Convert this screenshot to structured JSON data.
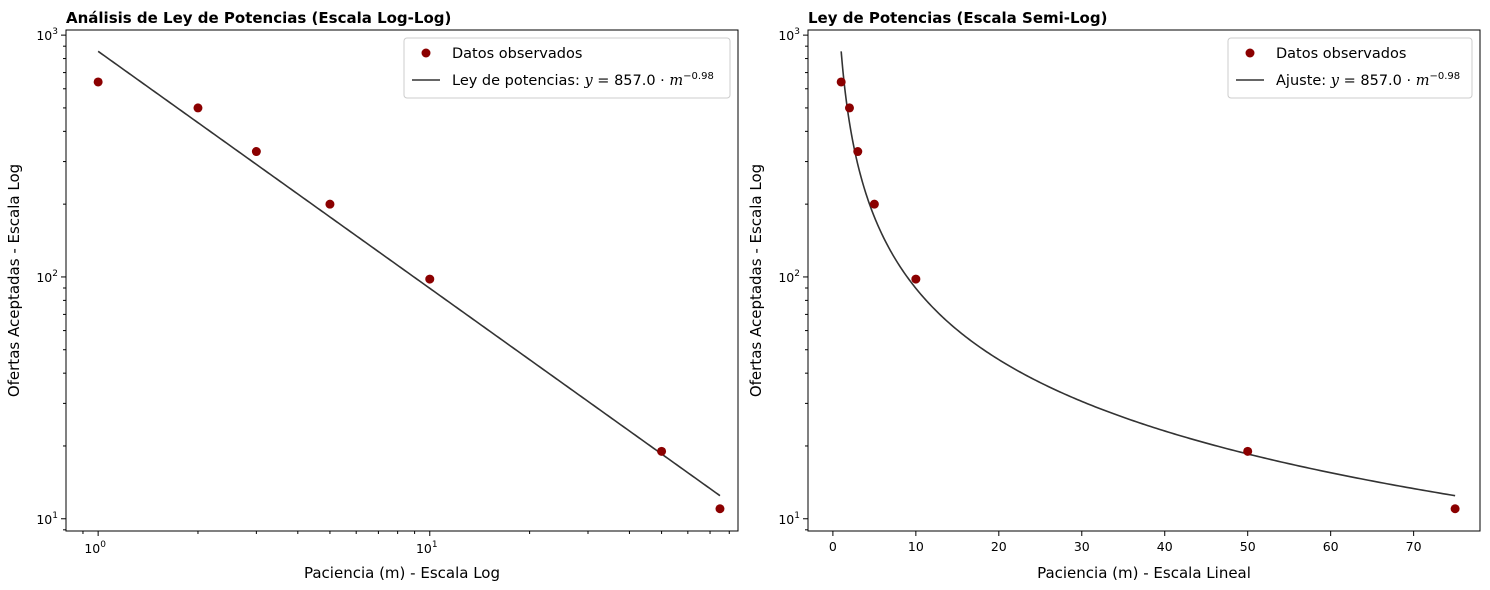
{
  "chart_data": [
    {
      "type": "scatter",
      "title": "Análisis de Ley de Potencias (Escala Log-Log)",
      "xlabel": "Paciencia (m) - Escala Log",
      "ylabel": "Ofertas Aceptadas - Escala Log",
      "xscale": "log",
      "yscale": "log",
      "xlim": [
        0.8,
        85
      ],
      "ylim": [
        8.9,
        1050
      ],
      "xticks": [
        {
          "value": 1,
          "base": "10",
          "exp": "0"
        },
        {
          "value": 10,
          "base": "10",
          "exp": "1"
        }
      ],
      "yticks": [
        {
          "value": 10,
          "base": "10",
          "exp": "1"
        },
        {
          "value": 100,
          "base": "10",
          "exp": "2"
        },
        {
          "value": 1000,
          "base": "10",
          "exp": "3"
        }
      ],
      "grid": false,
      "legend_position": "top-right",
      "series": [
        {
          "name": "Datos observados",
          "kind": "scatter",
          "color": "#8b0000",
          "x": [
            1,
            2,
            3,
            5,
            10,
            50,
            75
          ],
          "y": [
            640,
            500,
            330,
            200,
            98,
            19,
            11
          ]
        },
        {
          "name": "Ley de potencias: y = 857.0 · m^−0.98",
          "name_parts": {
            "prefix": "Ley de potencias: ",
            "coef": "857.0",
            "exp": "−0.98"
          },
          "kind": "line",
          "color": "#333333",
          "fit": {
            "a": 857.0,
            "b": -0.98,
            "xmin": 1,
            "xmax": 75
          }
        }
      ]
    },
    {
      "type": "scatter",
      "title": "Ley de Potencias (Escala Semi-Log)",
      "xlabel": "Paciencia (m) - Escala Lineal",
      "ylabel": "Ofertas Aceptadas - Escala Log",
      "xscale": "linear",
      "yscale": "log",
      "xlim": [
        -3,
        78
      ],
      "ylim": [
        8.9,
        1050
      ],
      "xticks": [
        0,
        10,
        20,
        30,
        40,
        50,
        60,
        70
      ],
      "yticks": [
        {
          "value": 10,
          "base": "10",
          "exp": "1"
        },
        {
          "value": 100,
          "base": "10",
          "exp": "2"
        },
        {
          "value": 1000,
          "base": "10",
          "exp": "3"
        }
      ],
      "grid": false,
      "legend_position": "top-right",
      "series": [
        {
          "name": "Datos observados",
          "kind": "scatter",
          "color": "#8b0000",
          "x": [
            1,
            2,
            3,
            5,
            10,
            50,
            75
          ],
          "y": [
            640,
            500,
            330,
            200,
            98,
            19,
            11
          ]
        },
        {
          "name": "Ajuste: y = 857.0 · m^−0.98",
          "name_parts": {
            "prefix": "Ajuste: ",
            "coef": "857.0",
            "exp": "−0.98"
          },
          "kind": "line",
          "color": "#333333",
          "fit": {
            "a": 857.0,
            "b": -0.98,
            "xmin": 1,
            "xmax": 75
          }
        }
      ]
    }
  ]
}
